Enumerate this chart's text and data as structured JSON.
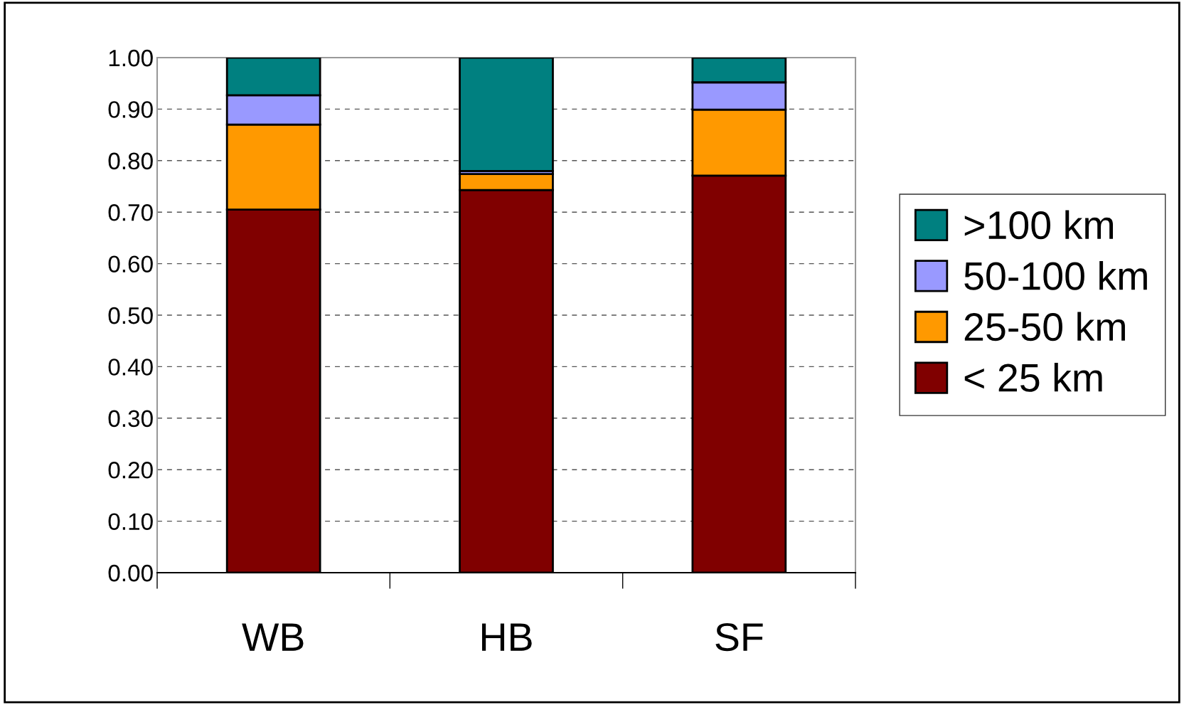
{
  "chart_data": {
    "type": "bar",
    "stacked": true,
    "categories": [
      "WB",
      "HB",
      "SF"
    ],
    "series": [
      {
        "name": "< 25 km",
        "color": "#800000",
        "values": [
          0.705,
          0.743,
          0.771
        ]
      },
      {
        "name": "25-50 km",
        "color": "#ff9900",
        "values": [
          0.165,
          0.031,
          0.128
        ]
      },
      {
        "name": "50-100 km",
        "color": "#9999ff",
        "values": [
          0.057,
          0.006,
          0.053
        ]
      },
      {
        "name": ">100 km",
        "color": "#008080",
        "values": [
          0.073,
          0.22,
          0.048
        ]
      }
    ],
    "ylim": [
      0,
      1
    ],
    "yticks": [
      {
        "value": 0,
        "label": "0.00"
      },
      {
        "value": 0.1,
        "label": "0.10"
      },
      {
        "value": 0.2,
        "label": "0.20"
      },
      {
        "value": 0.3,
        "label": "0.30"
      },
      {
        "value": 0.4,
        "label": "0.40"
      },
      {
        "value": 0.5,
        "label": "0.50"
      },
      {
        "value": 0.6,
        "label": "0.60"
      },
      {
        "value": 0.7,
        "label": "0.70"
      },
      {
        "value": 0.8,
        "label": "0.80"
      },
      {
        "value": 0.9,
        "label": "0.90"
      },
      {
        "value": 1,
        "label": "1.00"
      }
    ],
    "grid": "y",
    "legend": "right"
  }
}
